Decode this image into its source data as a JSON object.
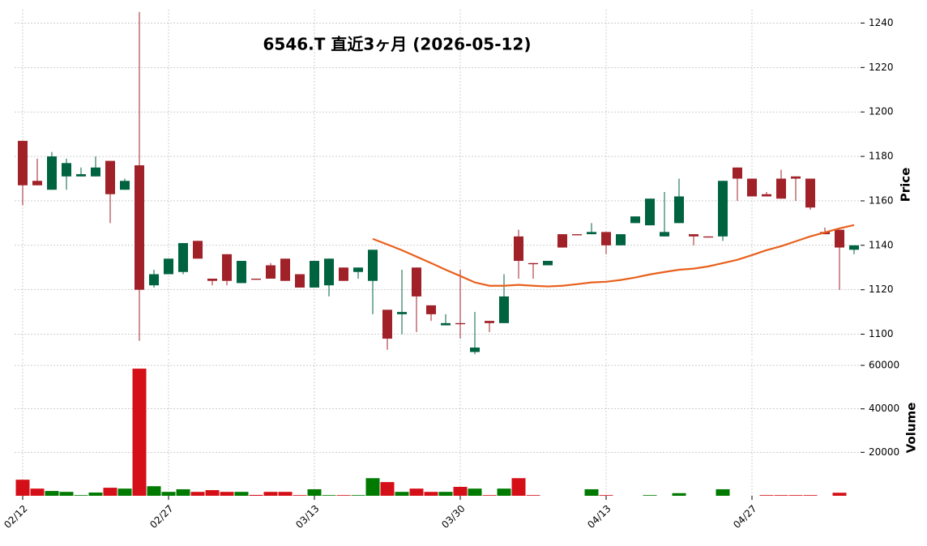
{
  "chart_data": {
    "type": "candlestick",
    "title": "6546.T  直近3ヶ月  (2026-05-12)",
    "ylabel": "Price",
    "categories": [
      "02/12",
      null,
      null,
      null,
      null,
      null,
      null,
      null,
      null,
      null,
      "02/27",
      null,
      null,
      null,
      null,
      null,
      null,
      null,
      null,
      null,
      "03/13",
      null,
      null,
      null,
      null,
      null,
      null,
      null,
      null,
      null,
      "03/30",
      null,
      null,
      null,
      null,
      null,
      null,
      null,
      null,
      null,
      "04/13",
      null,
      null,
      null,
      null,
      null,
      null,
      null,
      null,
      null,
      "04/27",
      null,
      null,
      null,
      null,
      null,
      null,
      null
    ],
    "open": [
      1187,
      1169,
      1165,
      1171,
      1171,
      1171,
      1178,
      1165,
      1176,
      1122,
      1127,
      1128,
      1142,
      1125,
      1136,
      1123,
      1125,
      1131,
      1134,
      1127,
      1121,
      1122,
      1130,
      1128,
      1124,
      1111,
      1109,
      1130,
      1113,
      1104,
      1105,
      1092,
      1106,
      1105,
      1144,
      1132,
      1131,
      1145,
      1145,
      1145,
      1146,
      1140,
      1150,
      1149,
      1144,
      1150,
      1145,
      1144,
      1144,
      1175,
      1170,
      1163,
      1170,
      1171,
      1170,
      1146,
      1147,
      1138
    ],
    "high": [
      1187,
      1179,
      1182,
      1179,
      1175,
      1180,
      1178,
      1170,
      1245,
      1129,
      1134,
      1141,
      1142,
      1125,
      1136,
      1133,
      1125,
      1132,
      1134,
      1127,
      1133,
      1134,
      1130,
      1130,
      1138,
      1111,
      1129,
      1130,
      1113,
      1109,
      1129,
      1110,
      1106,
      1127,
      1147,
      1132,
      1133,
      1145,
      1145,
      1150,
      1146,
      1145,
      1153,
      1161,
      1164,
      1170,
      1145,
      1144,
      1169,
      1175,
      1170,
      1164,
      1174,
      1171,
      1170,
      1148,
      1147,
      1140
    ],
    "low": [
      1158,
      1167,
      1165,
      1165,
      1171,
      1171,
      1150,
      1165,
      1097,
      1121,
      1127,
      1127,
      1134,
      1122,
      1122,
      1123,
      1124.5,
      1125,
      1124,
      1121,
      1121,
      1117,
      1124,
      1125,
      1109,
      1093,
      1100,
      1101,
      1106,
      1104,
      1098,
      1091,
      1101,
      1105,
      1125,
      1125,
      1131,
      1139,
      1144.5,
      1145,
      1136,
      1140,
      1150,
      1149,
      1144,
      1150,
      1140,
      1143.5,
      1142,
      1160,
      1162,
      1162,
      1161,
      1160,
      1156,
      1145,
      1120,
      1136
    ],
    "close": [
      1167,
      1167,
      1180,
      1177,
      1172,
      1175,
      1163,
      1169,
      1120,
      1127,
      1134,
      1141,
      1134,
      1124,
      1124,
      1133,
      1124.5,
      1125,
      1124,
      1121,
      1133,
      1134,
      1124,
      1130,
      1138,
      1098,
      1110,
      1117,
      1109,
      1105,
      1104.5,
      1094,
      1105,
      1117,
      1133,
      1131.5,
      1133,
      1139,
      1144.5,
      1146,
      1140,
      1145,
      1153,
      1161,
      1146,
      1162,
      1144,
      1143.5,
      1169,
      1170,
      1162,
      1162,
      1161,
      1170,
      1157,
      1145,
      1139,
      1140
    ],
    "up_color": "#006340",
    "down_color": "#a02128",
    "ma": {
      "color": "#e8601c",
      "values": [
        null,
        null,
        null,
        null,
        null,
        null,
        null,
        null,
        null,
        null,
        null,
        null,
        null,
        null,
        null,
        null,
        null,
        null,
        null,
        null,
        null,
        null,
        null,
        null,
        1142.9,
        1140.4,
        1137.8,
        1134.9,
        1132,
        1129,
        1126.2,
        1123.3,
        1121.8,
        1121.8,
        1122.2,
        1121.8,
        1121.5,
        1121.8,
        1122.5,
        1123.3,
        1123.6,
        1124.4,
        1125.5,
        1126.9,
        1128,
        1129,
        1129.5,
        1130.5,
        1132,
        1133.5,
        1135.6,
        1137.8,
        1139.6,
        1141.8,
        1144,
        1145.8,
        1147.6,
        1149.1
      ]
    },
    "ylim": [
      1090,
      1246
    ],
    "yticks": [
      1100,
      1120,
      1140,
      1160,
      1180,
      1200,
      1220,
      1240
    ],
    "grid": true,
    "volume": {
      "ylabel": "Volume",
      "up_color": "#007a00",
      "down_color": "#d50f17",
      "ylim": [
        0,
        63000
      ],
      "yticks": [
        20000,
        40000,
        60000
      ],
      "values": [
        7400,
        3300,
        2200,
        1800,
        300,
        1500,
        3700,
        3300,
        58500,
        4400,
        1800,
        3000,
        1800,
        2600,
        1800,
        1800,
        400,
        1800,
        1800,
        300,
        3000,
        300,
        300,
        300,
        8100,
        6300,
        1800,
        3300,
        1800,
        1800,
        4100,
        3300,
        300,
        3300,
        8100,
        300,
        0,
        0,
        0,
        3000,
        300,
        0,
        0,
        300,
        0,
        1200,
        0,
        0,
        3000,
        0,
        0,
        300,
        300,
        300,
        300,
        0,
        1400,
        0
      ]
    }
  }
}
